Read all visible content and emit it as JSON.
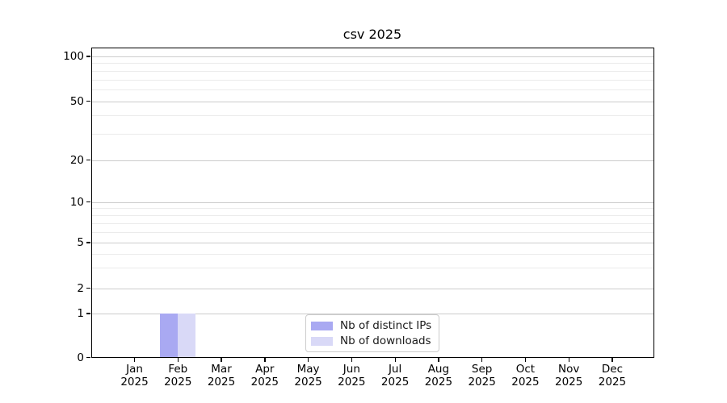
{
  "chart_data": {
    "type": "bar",
    "title": "csv 2025",
    "categories": [
      "Jan",
      "Feb",
      "Mar",
      "Apr",
      "May",
      "Jun",
      "Jul",
      "Aug",
      "Sep",
      "Oct",
      "Nov",
      "Dec"
    ],
    "category_year": "2025",
    "series": [
      {
        "name": "Nb of distinct IPs",
        "color": "#a9a9f2",
        "values": [
          0,
          1,
          0,
          0,
          0,
          0,
          0,
          0,
          0,
          0,
          0,
          0
        ]
      },
      {
        "name": "Nb of downloads",
        "color": "#d9d9f7",
        "values": [
          0,
          1,
          0,
          0,
          0,
          0,
          0,
          0,
          0,
          0,
          0,
          0
        ]
      }
    ],
    "xlabel": "",
    "ylabel": "",
    "yaxis": {
      "scale": "symlog",
      "major_ticks": [
        0,
        1,
        2,
        5,
        10,
        20,
        50,
        100
      ],
      "minor_ticks": [
        3,
        4,
        6,
        7,
        8,
        9,
        30,
        40,
        60,
        70,
        80,
        90
      ],
      "ylim": [
        0,
        110
      ]
    },
    "grid": {
      "axis": "y",
      "major_color": "#cccccc",
      "minor_color": "#ebebeb"
    },
    "legend": {
      "position": "inside lower center",
      "entries": [
        "Nb of distinct IPs",
        "Nb of downloads"
      ]
    }
  }
}
